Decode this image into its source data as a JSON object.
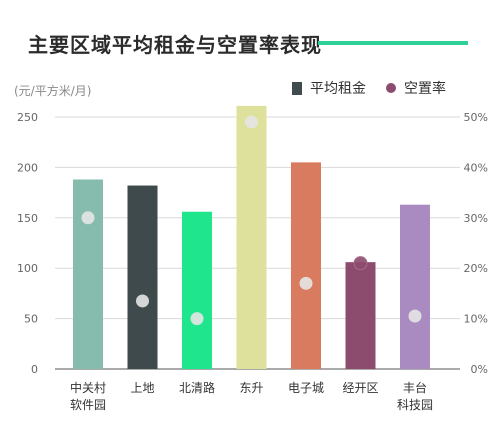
{
  "header": {
    "title": "主要区域平均租金与空置率表现",
    "unit_label": "(元/平方米/月)"
  },
  "legend": {
    "rent_label": "平均租金",
    "vacancy_label": "空置率"
  },
  "chart_data": {
    "type": "bar",
    "title": "主要区域平均租金与空置率表现",
    "ylabel": "(元/平方米/月)",
    "categories": [
      [
        "中关村",
        "软件园"
      ],
      [
        "上地"
      ],
      [
        "北清路"
      ],
      [
        "东升"
      ],
      [
        "电子城"
      ],
      [
        "经开区"
      ],
      [
        "丰台",
        "科技园"
      ]
    ],
    "series": [
      {
        "name": "平均租金",
        "type": "bar",
        "axis": "left",
        "values": [
          188,
          182,
          156,
          261,
          205,
          106,
          163
        ]
      },
      {
        "name": "空置率",
        "type": "scatter",
        "axis": "right",
        "values": [
          30,
          13.5,
          10,
          49,
          17,
          21,
          10.5
        ]
      }
    ],
    "bar_colors": [
      "#86bcad",
      "#3e4a4b",
      "#1fe58d",
      "#dde19c",
      "#d97b5f",
      "#8c4c6e",
      "#a98bc1"
    ],
    "dot_color_light": "#e6e6e6",
    "dot_color_dark": "#8c4c6e",
    "ylim_left": [
      0,
      250
    ],
    "yticks_left": [
      "0",
      "50",
      "100",
      "150",
      "200",
      "250"
    ],
    "ylim_right": [
      0,
      50
    ],
    "yticks_right": [
      "0%",
      "10%",
      "20%",
      "30%",
      "40%",
      "50%"
    ],
    "grid": true
  }
}
